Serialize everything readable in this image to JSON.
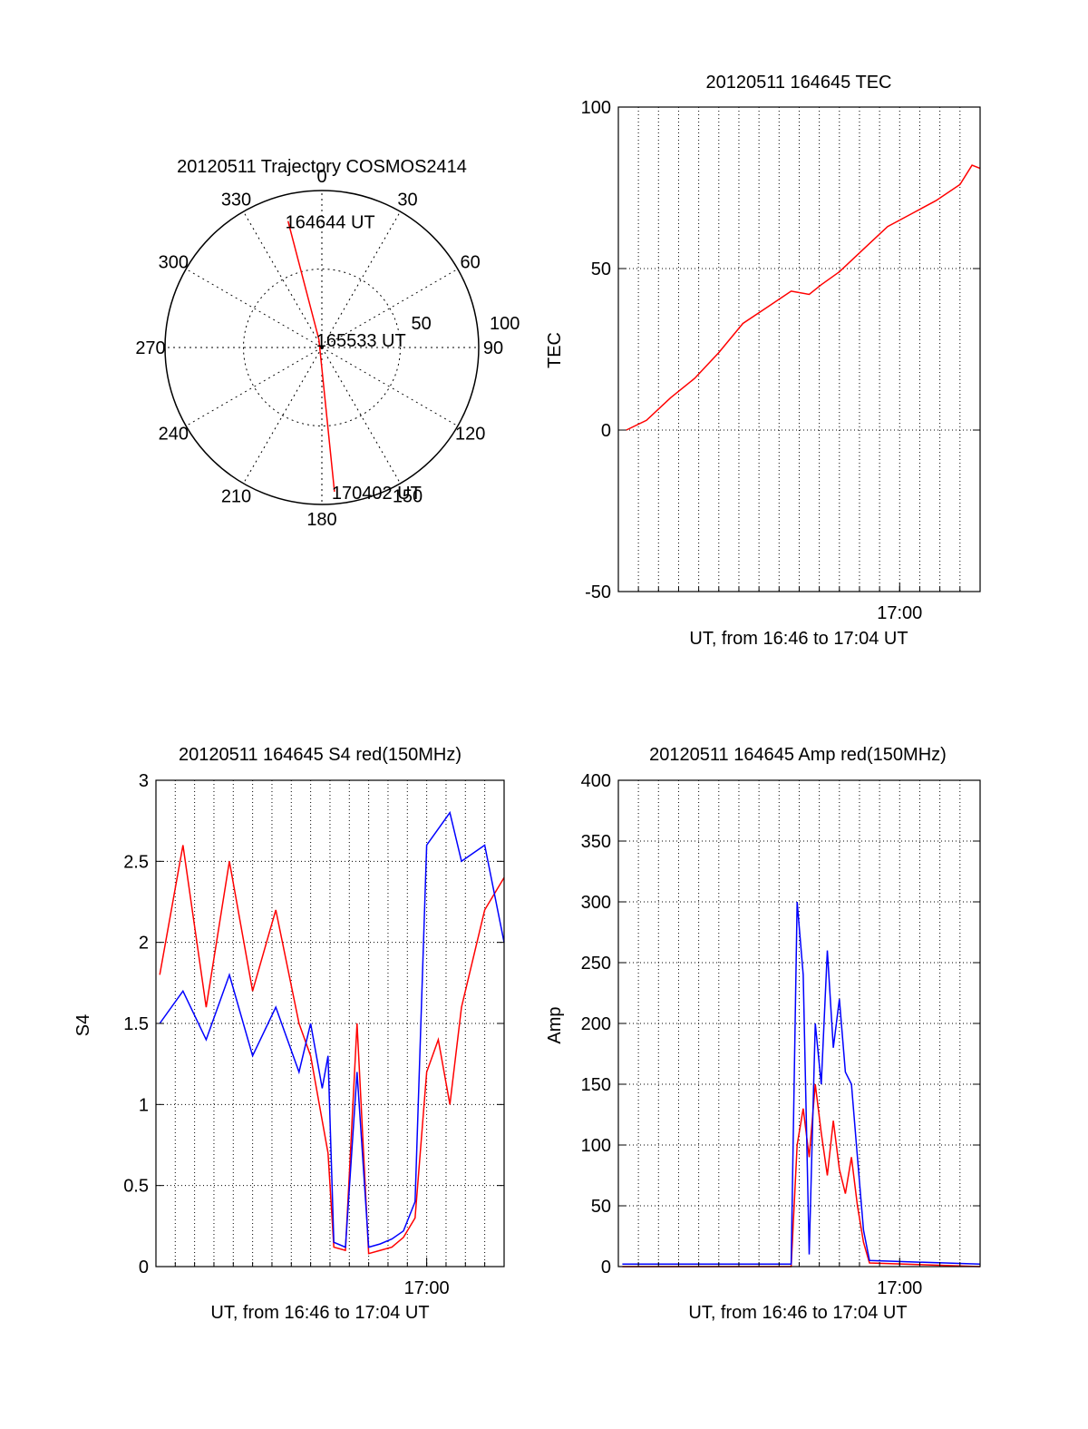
{
  "chart_data": [
    {
      "type": "polar",
      "title": "20120511 Trajectory COSMOS2414",
      "azimuth_labels": [
        "0",
        "30",
        "60",
        "90",
        "120",
        "150",
        "180",
        "210",
        "240",
        "270",
        "300",
        "330"
      ],
      "ring_labels": [
        "50",
        "100"
      ],
      "trajectory": [
        {
          "time_label": "164644 UT",
          "azimuth": 345,
          "elevation": 15
        },
        {
          "time_label": "165533 UT",
          "azimuth": 340,
          "elevation": 85
        },
        {
          "time_label": "170402 UT",
          "azimuth": 175,
          "elevation": 7
        }
      ],
      "color": "#ff0000"
    },
    {
      "type": "line",
      "title": "20120511 164645 TEC",
      "xlabel": "UT, from 16:46 to 17:04 UT",
      "ylabel": "TEC",
      "xlim": [
        16.7667,
        17.0667
      ],
      "ylim": [
        -50,
        100
      ],
      "yticks": [
        -50,
        0,
        50,
        100
      ],
      "xticks": [
        {
          "value": 17.0,
          "label": "17:00"
        }
      ],
      "grid": true,
      "series": [
        {
          "color": "#ff0000",
          "x": [
            16.7733,
            16.79,
            16.81,
            16.83,
            16.85,
            16.87,
            16.89,
            16.91,
            16.925,
            16.935,
            16.95,
            16.97,
            16.99,
            17.01,
            17.03,
            17.05,
            17.06,
            17.0667
          ],
          "y": [
            0,
            3,
            10,
            16,
            24,
            33,
            38,
            43,
            42,
            45,
            49,
            56,
            63,
            67,
            71,
            76,
            82,
            81
          ]
        }
      ]
    },
    {
      "type": "line",
      "title": "20120511 164645 S4 red(150MHz)",
      "xlabel": "UT, from 16:46 to 17:04 UT",
      "ylabel": "S4",
      "xlim": [
        16.7667,
        17.0667
      ],
      "ylim": [
        0,
        3
      ],
      "yticks": [
        0,
        0.5,
        1,
        1.5,
        2,
        2.5,
        3
      ],
      "xticks": [
        {
          "value": 17.0,
          "label": "17:00"
        }
      ],
      "grid": true,
      "series": [
        {
          "color": "#ff0000",
          "x": [
            16.77,
            16.79,
            16.81,
            16.83,
            16.85,
            16.87,
            16.89,
            16.9,
            16.91,
            16.915,
            16.92,
            16.93,
            16.94,
            16.95,
            16.96,
            16.97,
            16.98,
            16.99,
            17.0,
            17.01,
            17.02,
            17.03,
            17.05,
            17.0667
          ],
          "y": [
            1.8,
            2.6,
            1.6,
            2.5,
            1.7,
            2.2,
            1.5,
            1.3,
            0.9,
            0.7,
            0.12,
            0.1,
            1.5,
            0.08,
            0.1,
            0.12,
            0.18,
            0.3,
            1.2,
            1.4,
            1.0,
            1.6,
            2.2,
            2.4
          ]
        },
        {
          "color": "#0000ff",
          "x": [
            16.77,
            16.79,
            16.81,
            16.83,
            16.85,
            16.87,
            16.89,
            16.9,
            16.91,
            16.915,
            16.92,
            16.93,
            16.94,
            16.95,
            16.96,
            16.97,
            16.98,
            16.99,
            17.0,
            17.01,
            17.02,
            17.03,
            17.05,
            17.0667
          ],
          "y": [
            1.5,
            1.7,
            1.4,
            1.8,
            1.3,
            1.6,
            1.2,
            1.5,
            1.1,
            1.3,
            0.15,
            0.12,
            1.2,
            0.12,
            0.14,
            0.17,
            0.22,
            0.4,
            2.6,
            2.7,
            2.8,
            2.5,
            2.6,
            2.0
          ]
        }
      ]
    },
    {
      "type": "line",
      "title": "20120511 164645 Amp red(150MHz)",
      "xlabel": "UT, from 16:46 to 17:04 UT",
      "ylabel": "Amp",
      "xlim": [
        16.7667,
        17.0667
      ],
      "ylim": [
        0,
        400
      ],
      "yticks": [
        0,
        50,
        100,
        150,
        200,
        250,
        300,
        350,
        400
      ],
      "xticks": [
        {
          "value": 17.0,
          "label": "17:00"
        }
      ],
      "grid": true,
      "series": [
        {
          "color": "#ff0000",
          "x": [
            16.77,
            16.91,
            16.915,
            16.92,
            16.925,
            16.93,
            16.935,
            16.94,
            16.945,
            16.95,
            16.955,
            16.96,
            16.965,
            16.97,
            16.975,
            17.0667
          ],
          "y": [
            0,
            0,
            100,
            130,
            90,
            150,
            110,
            75,
            120,
            80,
            60,
            90,
            50,
            20,
            3,
            0
          ]
        },
        {
          "color": "#0000ff",
          "x": [
            16.77,
            16.91,
            16.915,
            16.92,
            16.925,
            16.93,
            16.935,
            16.94,
            16.945,
            16.95,
            16.955,
            16.96,
            16.965,
            16.97,
            16.975,
            17.0667
          ],
          "y": [
            2,
            2,
            300,
            240,
            10,
            200,
            150,
            260,
            180,
            220,
            160,
            150,
            90,
            30,
            5,
            2
          ]
        }
      ]
    }
  ]
}
